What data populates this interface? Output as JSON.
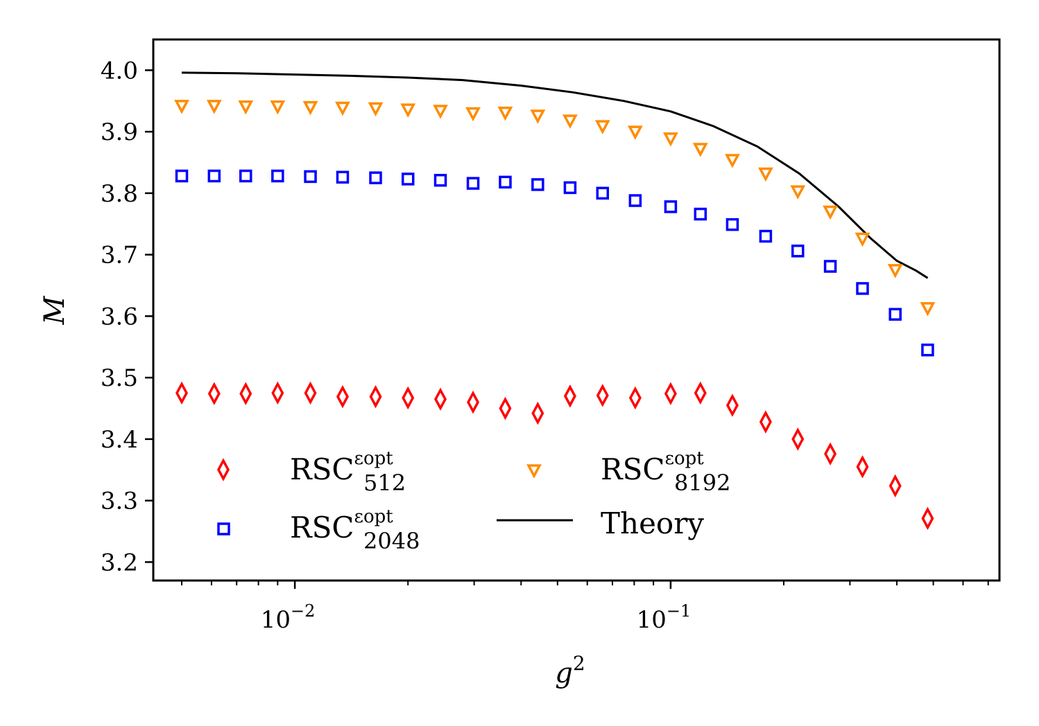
{
  "chart_data": {
    "type": "scatter",
    "xlabel": "g",
    "xlabel_superscript": "2",
    "ylabel": "M",
    "xscale": "log",
    "xlim": [
      0.0042,
      0.75
    ],
    "ylim": [
      3.17,
      4.05
    ],
    "grid": false,
    "yticks": [
      "3.2",
      "3.3",
      "3.4",
      "3.5",
      "3.6",
      "3.7",
      "3.8",
      "3.9",
      "4.0"
    ],
    "xticks": [
      {
        "base": "10",
        "exp": "−2"
      },
      {
        "base": "10",
        "exp": "−1"
      }
    ],
    "legend_placement": "lower-left",
    "x": [
      0.005,
      0.0061,
      0.0074,
      0.009,
      0.011,
      0.0134,
      0.0164,
      0.02,
      0.0244,
      0.0298,
      0.0363,
      0.0443,
      0.054,
      0.0659,
      0.0805,
      0.1,
      0.12,
      0.146,
      0.179,
      0.218,
      0.266,
      0.324,
      0.396,
      0.483
    ],
    "series": [
      {
        "name": "RSC",
        "name_super": "εopt",
        "name_sub": "512",
        "marker": "diamond",
        "color": "#ff0000",
        "values": [
          3.475,
          3.474,
          3.474,
          3.475,
          3.475,
          3.469,
          3.469,
          3.467,
          3.465,
          3.46,
          3.45,
          3.442,
          3.47,
          3.471,
          3.467,
          3.474,
          3.475,
          3.455,
          3.428,
          3.4,
          3.376,
          3.355,
          3.324,
          3.271
        ]
      },
      {
        "name": "RSC",
        "name_super": "εopt",
        "name_sub": "2048",
        "marker": "square",
        "color": "#0000ff",
        "values": [
          3.828,
          3.828,
          3.828,
          3.828,
          3.827,
          3.826,
          3.825,
          3.823,
          3.821,
          3.816,
          3.818,
          3.814,
          3.809,
          3.8,
          3.788,
          3.778,
          3.766,
          3.749,
          3.73,
          3.706,
          3.681,
          3.645,
          3.603,
          3.545
        ]
      },
      {
        "name": "RSC",
        "name_super": "εopt",
        "name_sub": "8192",
        "marker": "triangle-down",
        "color": "#ff8c00",
        "values": [
          3.942,
          3.942,
          3.941,
          3.941,
          3.94,
          3.939,
          3.938,
          3.936,
          3.934,
          3.93,
          3.931,
          3.926,
          3.918,
          3.909,
          3.9,
          3.889,
          3.872,
          3.854,
          3.832,
          3.803,
          3.77,
          3.726,
          3.675,
          3.613
        ]
      }
    ],
    "line": {
      "name": "Theory",
      "color": "#000000",
      "x": [
        0.005,
        0.007,
        0.01,
        0.014,
        0.02,
        0.028,
        0.04,
        0.055,
        0.075,
        0.1,
        0.13,
        0.17,
        0.22,
        0.28,
        0.34,
        0.4,
        0.45,
        0.483
      ],
      "values": [
        3.996,
        3.995,
        3.993,
        3.991,
        3.988,
        3.984,
        3.975,
        3.964,
        3.95,
        3.933,
        3.909,
        3.876,
        3.832,
        3.778,
        3.727,
        3.69,
        3.674,
        3.662
      ]
    }
  }
}
